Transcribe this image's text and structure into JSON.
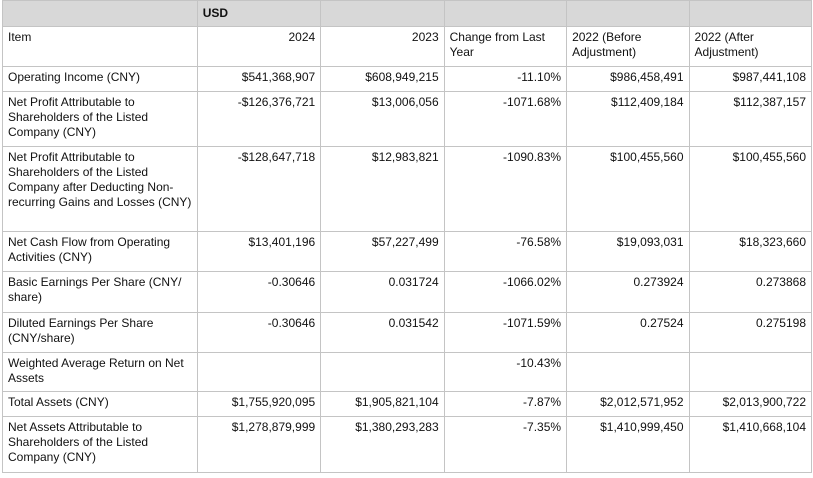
{
  "sheet": {
    "unit_label": "USD",
    "headers": {
      "item": "Item",
      "y2024": "2024",
      "y2023": "2023",
      "change": "Change from Last Year",
      "y2022_before": "2022 (Before Adjustment)",
      "y2022_after": "2022 (After Adjustment)"
    },
    "rows": [
      {
        "item": "Operating Income (CNY)",
        "y2024": "$541,368,907",
        "y2023": "$608,949,215",
        "change": "-11.10%",
        "y2022_before": "$986,458,491",
        "y2022_after": "$987,441,108"
      },
      {
        "item": "Net Profit Attributable to Shareholders of the Listed Company (CNY)",
        "y2024": "-$126,376,721",
        "y2023": "$13,006,056",
        "change": "-1071.68%",
        "y2022_before": "$112,409,184",
        "y2022_after": "$112,387,157"
      },
      {
        "item": "Net Profit Attributable to Shareholders of the Listed Company after Deducting Non-recurring Gains and Losses (CNY)",
        "y2024": "-$128,647,718",
        "y2023": "$12,983,821",
        "change": "-1090.83%",
        "y2022_before": "$100,455,560",
        "y2022_after": "$100,455,560"
      },
      {
        "item": "Net Cash Flow from Operating Activities (CNY)",
        "y2024": "$13,401,196",
        "y2023": "$57,227,499",
        "change": "-76.58%",
        "y2022_before": "$19,093,031",
        "y2022_after": "$18,323,660"
      },
      {
        "item": "Basic Earnings Per Share (CNY/ share)",
        "y2024": "-0.30646",
        "y2023": "0.031724",
        "change": "-1066.02%",
        "y2022_before": "0.273924",
        "y2022_after": "0.273868"
      },
      {
        "item": "Diluted Earnings Per Share (CNY/share)",
        "y2024": "-0.30646",
        "y2023": "0.031542",
        "change": "-1071.59%",
        "y2022_before": "0.27524",
        "y2022_after": "0.275198"
      },
      {
        "item": "Weighted Average Return on Net Assets",
        "y2024": "",
        "y2023": "",
        "change": "-10.43%",
        "y2022_before": "",
        "y2022_after": ""
      },
      {
        "item": "Total Assets (CNY)",
        "y2024": "$1,755,920,095",
        "y2023": "$1,905,821,104",
        "change": "-7.87%",
        "y2022_before": "$2,012,571,952",
        "y2022_after": "$2,013,900,722"
      },
      {
        "item": "Net Assets Attributable to Shareholders of the Listed Company (CNY)",
        "y2024": "$1,278,879,999",
        "y2023": "$1,380,293,283",
        "change": "-7.35%",
        "y2022_before": "$1,410,999,450",
        "y2022_after": "$1,410,668,104"
      }
    ]
  }
}
